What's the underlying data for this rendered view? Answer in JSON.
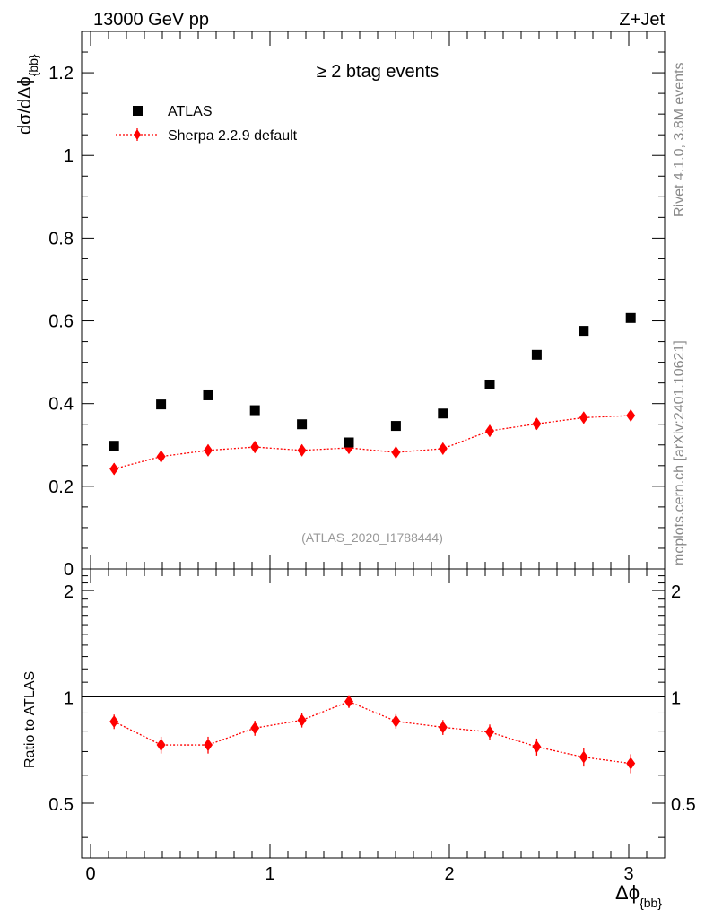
{
  "chart_data": {
    "type": "scatter",
    "header_left": "13000 GeV pp",
    "header_right": "Z+Jet",
    "annotation": "≥ 2 btag events",
    "analysis_tag": "(ATLAS_2020_I1788444)",
    "side_label_top": "Rivet 4.1.0,  3.8M events",
    "side_label_bottom": "mcplots.cern.ch [arXiv:2401.10621]",
    "ylabel_main": {
      "prefix": "dσ/dΔϕ",
      "sub": "{bb}"
    },
    "ylabel_ratio": "Ratio to ATLAS",
    "xlabel": {
      "prefix": "Δϕ",
      "sub": "{bb}"
    },
    "xlim": [
      -0.05,
      3.2
    ],
    "ylim_main": [
      0,
      1.3
    ],
    "ylim_ratio": [
      0.35,
      2.3
    ],
    "x_ticks": [
      0,
      1,
      2,
      3
    ],
    "x_tick_labels": [
      "0",
      "1",
      "2",
      "3"
    ],
    "y_ticks_main": [
      0.2,
      0.4,
      0.6,
      0.8,
      1,
      1.2
    ],
    "y_tick_labels_main": [
      "0.2",
      "0.4",
      "0.6",
      "0.8",
      "1",
      "1.2"
    ],
    "y_ticks_ratio": [
      0.5,
      1,
      2
    ],
    "y_tick_labels_ratio": [
      "0.5",
      "1",
      "2"
    ],
    "y_bottom_label_main": "0",
    "x": [
      0.131,
      0.393,
      0.655,
      0.916,
      1.178,
      1.44,
      1.702,
      1.964,
      2.225,
      2.487,
      2.749,
      3.011
    ],
    "series": [
      {
        "name": "ATLAS",
        "marker": "square",
        "color": "#000000",
        "values": [
          0.298,
          0.398,
          0.42,
          0.384,
          0.35,
          0.306,
          0.346,
          0.376,
          0.446,
          0.518,
          0.576,
          0.607
        ]
      },
      {
        "name": "Sherpa 2.2.9 default",
        "marker": "diamond",
        "color": "#ff0000",
        "values": [
          0.242,
          0.272,
          0.287,
          0.295,
          0.287,
          0.293,
          0.282,
          0.291,
          0.334,
          0.351,
          0.366,
          0.371
        ],
        "errors": [
          0.014,
          0.014,
          0.014,
          0.014,
          0.014,
          0.014,
          0.014,
          0.014,
          0.014,
          0.014,
          0.014,
          0.014
        ],
        "ratio": [
          0.851,
          0.731,
          0.731,
          0.816,
          0.859,
          0.97,
          0.853,
          0.82,
          0.795,
          0.722,
          0.675,
          0.648
        ],
        "ratio_errors": [
          0.04,
          0.04,
          0.04,
          0.04,
          0.04,
          0.04,
          0.04,
          0.04,
          0.04,
          0.04,
          0.04,
          0.04
        ]
      }
    ],
    "legend_position": "top-left"
  }
}
